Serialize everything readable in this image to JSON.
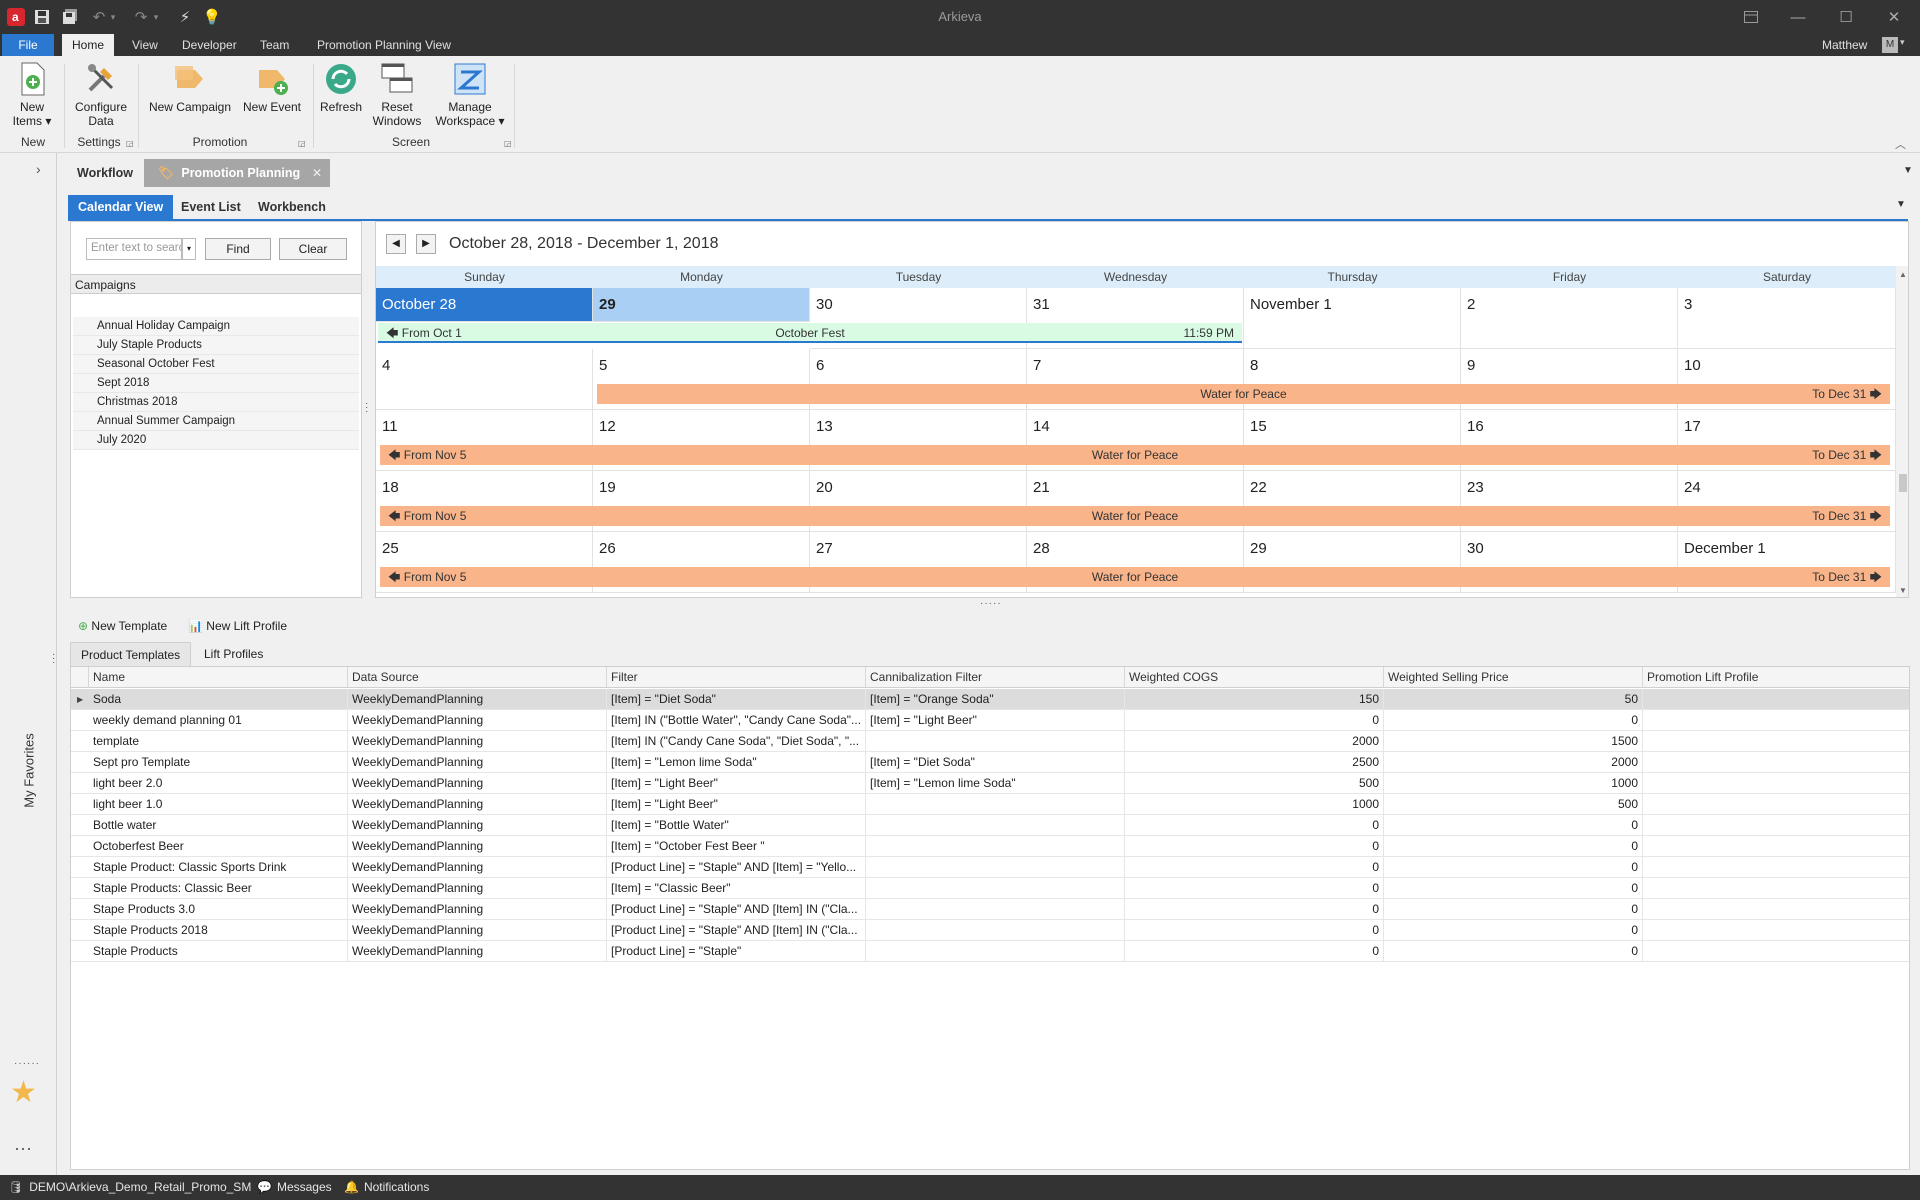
{
  "app": {
    "title": "Arkieva",
    "user": "Matthew",
    "user_initial": "M"
  },
  "menu": {
    "file": "File",
    "tabs": [
      "Home",
      "View",
      "Developer",
      "Team",
      "Promotion Planning View"
    ]
  },
  "ribbon": {
    "new_items": {
      "line1": "New",
      "line2": "Items ▾"
    },
    "configure_data": {
      "line1": "Configure",
      "line2": "Data"
    },
    "new_campaign": "New Campaign",
    "new_event": "New Event",
    "refresh": "Refresh",
    "reset_windows": {
      "line1": "Reset",
      "line2": "Windows"
    },
    "manage_workspace": {
      "line1": "Manage",
      "line2": "Workspace ▾"
    },
    "groups": {
      "new": "New",
      "settings": "Settings",
      "promotion": "Promotion",
      "screen": "Screen"
    }
  },
  "doc_tabs": {
    "workflow": "Workflow",
    "promotion_planning": "Promotion Planning"
  },
  "sub_tabs": {
    "calendar": "Calendar View",
    "event_list": "Event List",
    "workbench": "Workbench"
  },
  "left_panel": {
    "search_placeholder": "Enter text to search",
    "find": "Find",
    "clear": "Clear",
    "campaigns_header": "Campaigns",
    "campaigns": [
      "Annual Holiday Campaign",
      "July Staple Products",
      "Seasonal October Fest",
      "Sept 2018",
      "Christmas 2018",
      "Annual Summer Campaign",
      "July 2020"
    ]
  },
  "calendar": {
    "range": "October 28, 2018 - December 1, 2018",
    "days": [
      "Sunday",
      "Monday",
      "Tuesday",
      "Wednesday",
      "Thursday",
      "Friday",
      "Saturday"
    ],
    "weeks": [
      [
        "October 28",
        "29",
        "30",
        "31",
        "November 1",
        "2",
        "3"
      ],
      [
        "4",
        "5",
        "6",
        "7",
        "8",
        "9",
        "10"
      ],
      [
        "11",
        "12",
        "13",
        "14",
        "15",
        "16",
        "17"
      ],
      [
        "18",
        "19",
        "20",
        "21",
        "22",
        "23",
        "24"
      ],
      [
        "25",
        "26",
        "27",
        "28",
        "29",
        "30",
        "December 1"
      ]
    ],
    "events": {
      "w0": {
        "left": "From Oct 1",
        "name": "October Fest",
        "right": "11:59 PM"
      },
      "w1": {
        "name": "Water for Peace",
        "right": "To Dec 31"
      },
      "w2": {
        "left": "From Nov 5",
        "name": "Water for Peace",
        "right": "To Dec 31"
      },
      "w3": {
        "left": "From Nov 5",
        "name": "Water for Peace",
        "right": "To Dec 31"
      },
      "w4": {
        "left": "From Nov 5",
        "name": "Water for Peace",
        "right": "To Dec 31"
      }
    },
    "colors": {
      "today": "#2b78d0",
      "selected": "#a9cff5",
      "october_fest": "#d9fbe3",
      "water_for_peace": "#f9b48a"
    }
  },
  "lower": {
    "new_template": "New Template",
    "new_lift_profile": "New Lift Profile",
    "tabs": [
      "Product Templates",
      "Lift Profiles"
    ],
    "columns": [
      "Name",
      "Data Source",
      "Filter",
      "Cannibalization Filter",
      "Weighted COGS",
      "Weighted Selling Price",
      "Promotion Lift Profile"
    ],
    "rows": [
      [
        "Soda",
        "WeeklyDemandPlanning",
        "[Item] = \"Diet Soda\"",
        "[Item] = \"Orange Soda\"",
        "150",
        "50",
        ""
      ],
      [
        "weekly demand planning 01",
        "WeeklyDemandPlanning",
        "[Item]  IN (\"Bottle Water\", \"Candy Cane Soda\"...",
        "[Item] = \"Light Beer\"",
        "0",
        "0",
        ""
      ],
      [
        "template",
        "WeeklyDemandPlanning",
        "[Item]  IN (\"Candy Cane Soda\", \"Diet Soda\", \"...",
        "",
        "2000",
        "1500",
        ""
      ],
      [
        "Sept pro Template",
        "WeeklyDemandPlanning",
        "[Item] = \"Lemon lime Soda\"",
        "[Item] = \"Diet Soda\"",
        "2500",
        "2000",
        ""
      ],
      [
        "light beer 2.0",
        "WeeklyDemandPlanning",
        "[Item] = \"Light Beer\"",
        "[Item] = \"Lemon lime Soda\"",
        "500",
        "1000",
        ""
      ],
      [
        "light beer 1.0",
        "WeeklyDemandPlanning",
        "[Item] = \"Light Beer\"",
        "",
        "1000",
        "500",
        ""
      ],
      [
        "Bottle water",
        "WeeklyDemandPlanning",
        "[Item] = \"Bottle Water\"",
        "",
        "0",
        "0",
        ""
      ],
      [
        "Octoberfest Beer",
        "WeeklyDemandPlanning",
        "[Item] = \"October Fest Beer \"",
        "",
        "0",
        "0",
        ""
      ],
      [
        "Staple Product: Classic Sports Drink",
        "WeeklyDemandPlanning",
        "[Product Line] = \"Staple\" AND [Item] = \"Yello...",
        "",
        "0",
        "0",
        ""
      ],
      [
        "Staple Products: Classic Beer",
        "WeeklyDemandPlanning",
        "[Item] = \"Classic Beer\"",
        "",
        "0",
        "0",
        ""
      ],
      [
        "Stape Products 3.0",
        "WeeklyDemandPlanning",
        "[Product Line] = \"Staple\" AND [Item]  IN (\"Cla...",
        "",
        "0",
        "0",
        ""
      ],
      [
        "Staple Products 2018",
        "WeeklyDemandPlanning",
        "[Product Line] = \"Staple\" AND [Item]  IN (\"Cla...",
        "",
        "0",
        "0",
        ""
      ],
      [
        "Staple Products",
        "WeeklyDemandPlanning",
        "[Product Line] = \"Staple\"",
        "",
        "0",
        "0",
        ""
      ]
    ]
  },
  "side": {
    "favorites": "My Favorites"
  },
  "status": {
    "db": "DEMO\\Arkieva_Demo_Retail_Promo_SM",
    "messages": "Messages",
    "notifications": "Notifications"
  }
}
